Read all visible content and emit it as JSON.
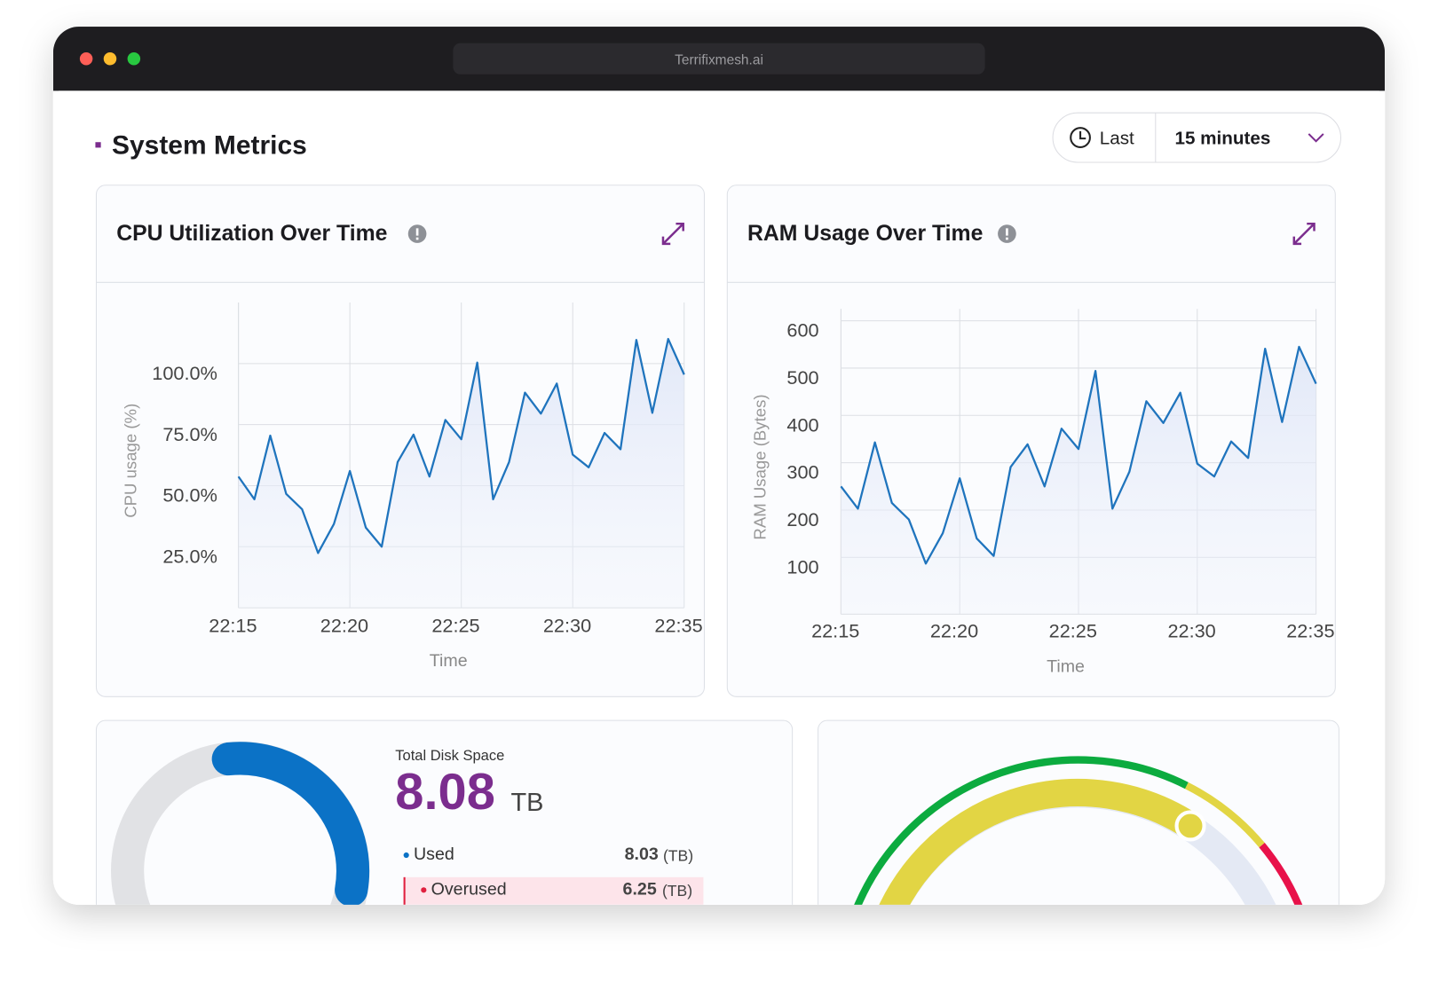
{
  "browser": {
    "url": "Terrifixmesh.ai"
  },
  "header": {
    "title": "System Metrics",
    "time_range": {
      "prefix": "Last",
      "value": "15 minutes"
    }
  },
  "chart_data": [
    {
      "type": "line",
      "title": "CPU Utilization Over Time",
      "x_label": "Time",
      "y_label": "CPU usage (%)",
      "categories": [
        "22:15",
        null,
        null,
        null,
        null,
        null,
        null,
        "22:20",
        null,
        null,
        null,
        null,
        null,
        null,
        "22:25",
        null,
        null,
        null,
        null,
        null,
        null,
        "22:30",
        null,
        null,
        null,
        null,
        null,
        null,
        "22:35"
      ],
      "values": [
        53.7,
        44.4,
        70.5,
        46.6,
        40.3,
        22.4,
        34.3,
        56.0,
        32.8,
        25.0,
        59.7,
        70.9,
        53.7,
        76.9,
        69.0,
        100.4,
        44.4,
        59.7,
        88.1,
        79.5,
        91.8,
        62.7,
        57.5,
        71.6,
        64.9,
        109.7,
        79.8,
        110.1,
        95.5
      ],
      "color": "#1f74bd",
      "ylim": [
        0,
        125
      ],
      "yticks": [
        {
          "value": 25,
          "label": "25.0%"
        },
        {
          "value": 50,
          "label": "50.0%"
        },
        {
          "value": 75,
          "label": "75.0%"
        },
        {
          "value": 100,
          "label": "100.0%"
        }
      ],
      "grid": true
    },
    {
      "type": "line",
      "title": "RAM Usage Over Time",
      "x_label": "Time",
      "y_label": "RAM Usage (Bytes)",
      "categories": [
        "22:15",
        null,
        null,
        null,
        null,
        null,
        null,
        "22:20",
        null,
        null,
        null,
        null,
        null,
        null,
        "22:25",
        null,
        null,
        null,
        null,
        null,
        null,
        "22:30",
        null,
        null,
        null,
        null,
        null,
        null,
        "22:35"
      ],
      "values": [
        250,
        203,
        343,
        215,
        180,
        87,
        151,
        267,
        140,
        103,
        291,
        339,
        250,
        372,
        329,
        494,
        203,
        281,
        430,
        384,
        448,
        298,
        271,
        345,
        310,
        541,
        386,
        545,
        467
      ],
      "color": "#1f74bd",
      "ylim": [
        -20,
        625
      ],
      "yticks": [
        100,
        200,
        300,
        400,
        500,
        600
      ],
      "grid": true
    }
  ],
  "disk": {
    "title": "Total Disk Space",
    "total": 8.08,
    "unit": "TB",
    "rows": [
      {
        "label": "Used",
        "value": 8.03,
        "unit": "(TB)"
      },
      {
        "label": "Overused",
        "value": 6.25,
        "unit": "(TB)"
      }
    ]
  }
}
